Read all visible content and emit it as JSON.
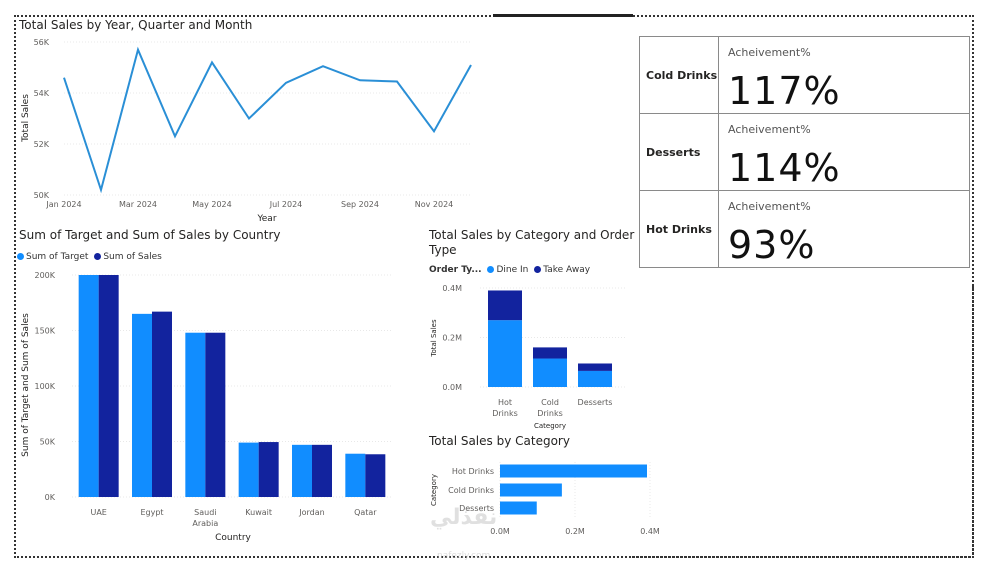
{
  "chart_data": [
    {
      "type": "line",
      "title": "Total Sales by Year, Quarter and Month",
      "xlabel": "Year",
      "ylabel": "Total Sales",
      "x": [
        "Jan 2024",
        "Feb 2024",
        "Mar 2024",
        "Apr 2024",
        "May 2024",
        "Jun 2024",
        "Jul 2024",
        "Aug 2024",
        "Sep 2024",
        "Oct 2024",
        "Nov 2024",
        "Dec 2024"
      ],
      "xticks": [
        "Jan 2024",
        "Mar 2024",
        "May 2024",
        "Jul 2024",
        "Sep 2024",
        "Nov 2024"
      ],
      "yticks": [
        "50K",
        "52K",
        "54K",
        "56K"
      ],
      "ylim": [
        50000,
        56000
      ],
      "values": [
        54600,
        50200,
        55700,
        52300,
        55200,
        53000,
        54400,
        55050,
        54500,
        54450,
        52500,
        55100
      ],
      "color": "#2a8fd6"
    },
    {
      "type": "bar",
      "title": "Sum of Target and Sum of Sales by Country",
      "xlabel": "Country",
      "ylabel": "Sum of Target and Sum of Sales",
      "categories": [
        "UAE",
        "Egypt",
        "Saudi Arabia",
        "Kuwait",
        "Jordan",
        "Qatar"
      ],
      "category_lines": [
        [
          "UAE"
        ],
        [
          "Egypt"
        ],
        [
          "Saudi",
          "Arabia"
        ],
        [
          "Kuwait"
        ],
        [
          "Jordan"
        ],
        [
          "Qatar"
        ]
      ],
      "yticks": [
        "0K",
        "50K",
        "100K",
        "150K",
        "200K"
      ],
      "ylim": [
        0,
        200000
      ],
      "series": [
        {
          "name": "Sum of Target",
          "color": "#118dff",
          "values": [
            200000,
            165000,
            148000,
            49000,
            47000,
            39000
          ]
        },
        {
          "name": "Sum of Sales",
          "color": "#12239e",
          "values": [
            200000,
            167000,
            148000,
            49500,
            47000,
            38500
          ]
        }
      ]
    },
    {
      "type": "bar",
      "stacked": true,
      "title": "Total Sales by Category and Order Type",
      "title_lines": [
        "Total Sales by Category and Order",
        "Type"
      ],
      "legend_title": "Order Ty...",
      "xlabel": "Category",
      "ylabel": "Total Sales",
      "categories": [
        "Hot Drinks",
        "Cold Drinks",
        "Desserts"
      ],
      "category_lines": [
        [
          "Hot",
          "Drinks"
        ],
        [
          "Cold",
          "Drinks"
        ],
        [
          "Desserts"
        ]
      ],
      "yticks": [
        "0.0M",
        "0.2M",
        "0.4M"
      ],
      "ylim": [
        0,
        400000
      ],
      "series": [
        {
          "name": "Dine In",
          "color": "#118dff",
          "values": [
            270000,
            115000,
            65000
          ]
        },
        {
          "name": "Take Away",
          "color": "#12239e",
          "values": [
            120000,
            45000,
            30000
          ]
        }
      ]
    },
    {
      "type": "bar",
      "orientation": "horizontal",
      "title": "Total Sales by Category",
      "xlabel": "",
      "ylabel": "Category",
      "categories": [
        "Hot Drinks",
        "Cold Drinks",
        "Desserts"
      ],
      "xticks": [
        "0.0M",
        "0.2M",
        "0.4M"
      ],
      "xlim": [
        0,
        400000
      ],
      "values": [
        392000,
        165000,
        98000
      ],
      "color": "#118dff"
    }
  ],
  "kpi": {
    "label": "Acheivement%",
    "rows": [
      {
        "category": "Cold Drinks",
        "value": "117%"
      },
      {
        "category": "Desserts",
        "value": "114%"
      },
      {
        "category": "Hot Drinks",
        "value": "93%"
      }
    ]
  },
  "watermark": {
    "text": "نفذلي",
    "sub": "nafezly.com"
  }
}
